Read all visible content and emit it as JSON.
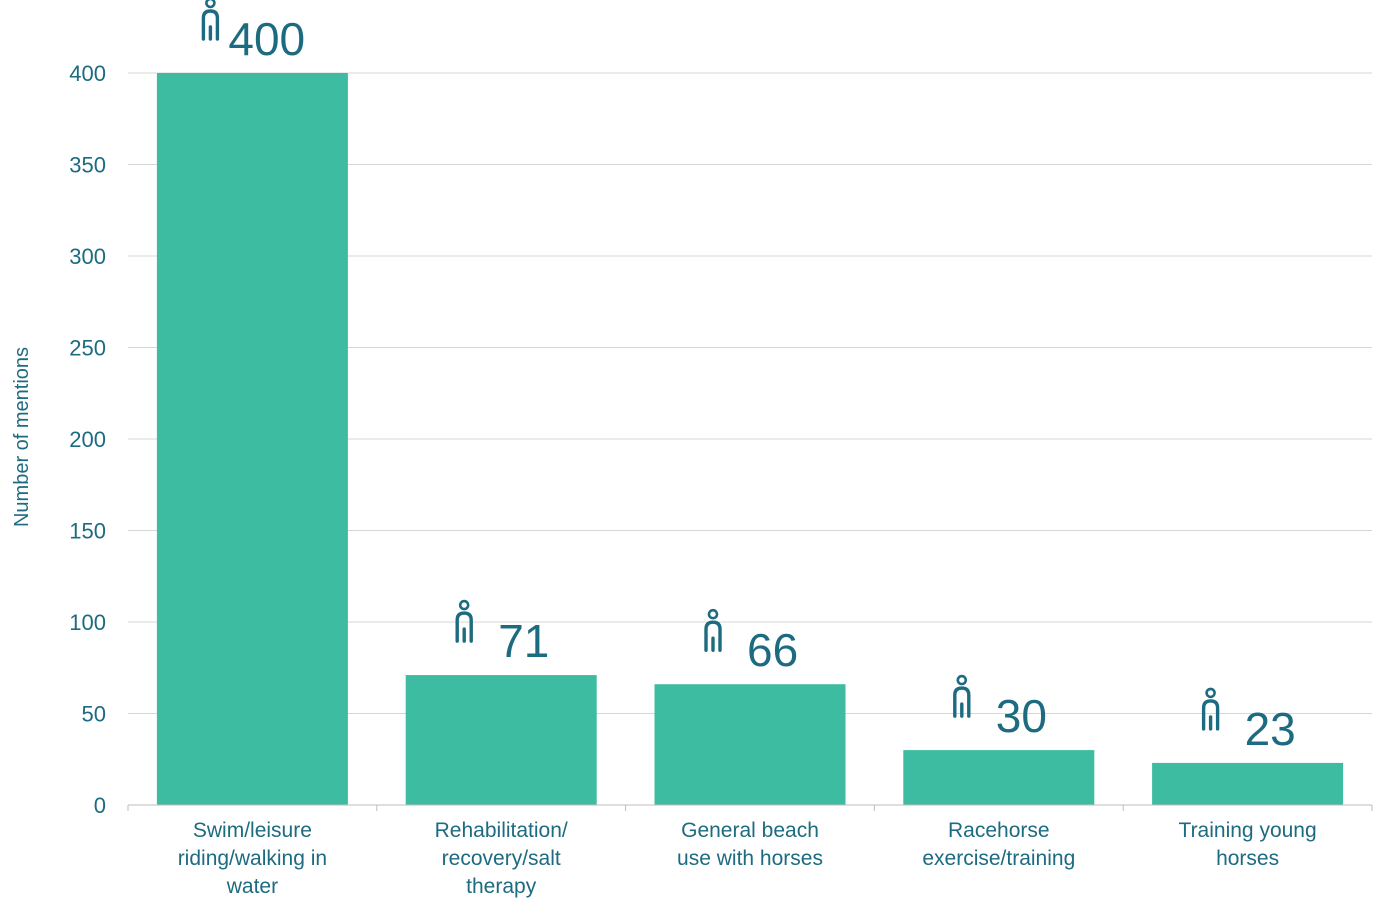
{
  "colors": {
    "bar": "#3dbca1",
    "text": "#1d6b80",
    "grid": "#d7d7d7",
    "axis": "#bdbdbd"
  },
  "icon": "person-icon",
  "chart_data": {
    "type": "bar",
    "categories": [
      [
        "Swim/leisure",
        "riding/walking in",
        "water"
      ],
      [
        "Rehabilitation/",
        "recovery/salt",
        "therapy"
      ],
      [
        "General beach",
        "use with horses"
      ],
      [
        "Racehorse",
        "exercise/training"
      ],
      [
        "Training young",
        "horses"
      ]
    ],
    "values": [
      400,
      71,
      66,
      30,
      23
    ],
    "value_labels": [
      "400",
      "71",
      "66",
      "30",
      "23"
    ],
    "ylabel": "Number of mentions",
    "ylim": [
      0,
      400
    ],
    "yticks": [
      0,
      50,
      100,
      150,
      200,
      250,
      300,
      350,
      400
    ],
    "grid": true
  }
}
